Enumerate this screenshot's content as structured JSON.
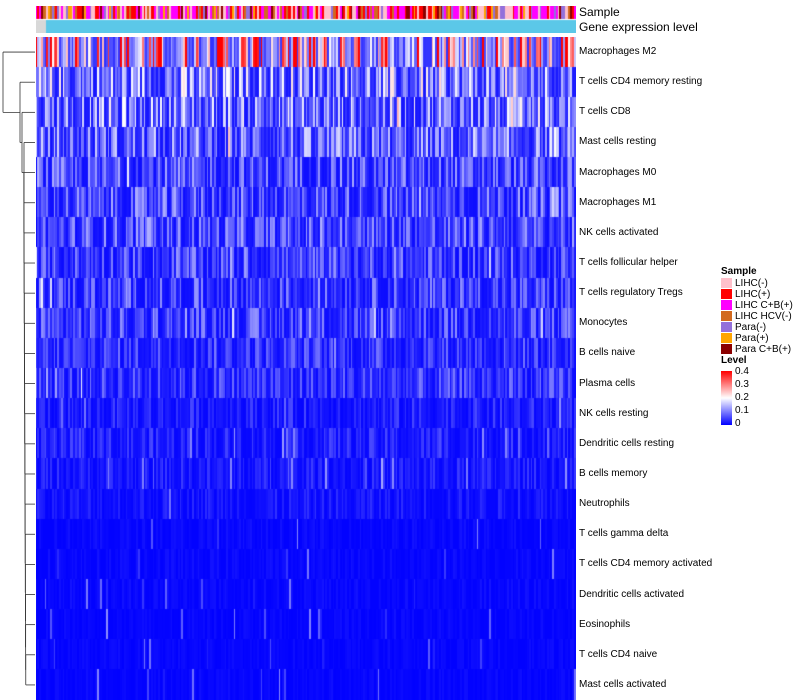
{
  "chart_data": {
    "type": "heatmap",
    "annotation_rows": [
      "Sample",
      "Gene expression level"
    ],
    "rows": [
      {
        "label": "Macrophages M2",
        "mean": 0.26
      },
      {
        "label": "T cells CD4 memory resting",
        "mean": 0.12
      },
      {
        "label": "T cells CD8",
        "mean": 0.11
      },
      {
        "label": "Mast cells resting",
        "mean": 0.09
      },
      {
        "label": "Macrophages M0",
        "mean": 0.07
      },
      {
        "label": "Macrophages M1",
        "mean": 0.07
      },
      {
        "label": "NK cells activated",
        "mean": 0.07
      },
      {
        "label": "T cells follicular helper",
        "mean": 0.06
      },
      {
        "label": "T cells regulatory  Tregs",
        "mean": 0.06
      },
      {
        "label": "Monocytes",
        "mean": 0.06
      },
      {
        "label": "B cells naive",
        "mean": 0.05
      },
      {
        "label": "Plasma cells",
        "mean": 0.05
      },
      {
        "label": "NK cells resting",
        "mean": 0.03
      },
      {
        "label": "Dendritic cells resting",
        "mean": 0.03
      },
      {
        "label": "B cells memory",
        "mean": 0.025
      },
      {
        "label": "Neutrophils",
        "mean": 0.02
      },
      {
        "label": "T cells gamma delta",
        "mean": 0.008
      },
      {
        "label": "T cells CD4 memory activated",
        "mean": 0.008
      },
      {
        "label": "Dendritic cells activated",
        "mean": 0.008
      },
      {
        "label": "Eosinophils",
        "mean": 0.006
      },
      {
        "label": "T cells CD4 naive",
        "mean": 0.006
      },
      {
        "label": "Mast cells activated",
        "mean": 0.006
      }
    ],
    "legend": {
      "sample_title": "Sample",
      "samples": [
        {
          "name": "LIHC(-)",
          "color": "#FFC0CB"
        },
        {
          "name": "LIHC(+)",
          "color": "#FF0000"
        },
        {
          "name": "LIHC C+B(+)",
          "color": "#FF00FF"
        },
        {
          "name": "LIHC HCV(-)",
          "color": "#D2691E"
        },
        {
          "name": "Para(-)",
          "color": "#9370DB"
        },
        {
          "name": "Para(+)",
          "color": "#FFA500"
        },
        {
          "name": "Para C+B(+)",
          "color": "#8B0000"
        }
      ],
      "level_title": "Level",
      "level_ticks": [
        "0.4",
        "0.3",
        "0.2",
        "0.1",
        "0"
      ],
      "level_range": [
        0,
        0.4
      ],
      "level_colors": {
        "low": "#0000FF",
        "mid": "#FFFFFF",
        "high": "#FF0000"
      }
    },
    "gene_expression_color": "#5BC8E8"
  }
}
